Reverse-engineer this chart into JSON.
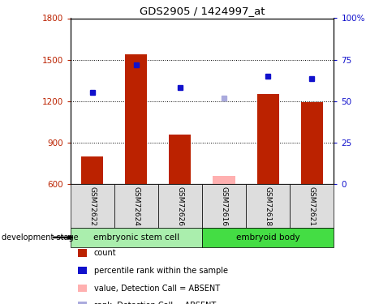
{
  "title": "GDS2905 / 1424997_at",
  "samples": [
    "GSM72622",
    "GSM72624",
    "GSM72626",
    "GSM72616",
    "GSM72618",
    "GSM72621"
  ],
  "bar_values": [
    800,
    1540,
    960,
    660,
    1250,
    1195
  ],
  "bar_absent": [
    false,
    false,
    false,
    true,
    false,
    false
  ],
  "dot_values": [
    1265,
    1460,
    1300,
    1220,
    1380,
    1360
  ],
  "dot_absent": [
    false,
    false,
    false,
    true,
    false,
    false
  ],
  "ylim_left": [
    600,
    1800
  ],
  "ylim_right": [
    0,
    100
  ],
  "yticks_left": [
    600,
    900,
    1200,
    1500,
    1800
  ],
  "yticks_right": [
    0,
    25,
    50,
    75,
    100
  ],
  "yticklabels_right": [
    "0",
    "25",
    "50",
    "75",
    "100%"
  ],
  "group1_label": "embryonic stem cell",
  "group2_label": "embryoid body",
  "stage_label": "development stage",
  "bar_color": "#BB2200",
  "bar_absent_color": "#FFB0B0",
  "dot_color": "#1111CC",
  "dot_absent_color": "#AAAADD",
  "group1_color": "#AAEEAD",
  "group2_color": "#44DD44",
  "legend_items": [
    {
      "label": "count",
      "color": "#BB2200"
    },
    {
      "label": "percentile rank within the sample",
      "color": "#1111CC"
    },
    {
      "label": "value, Detection Call = ABSENT",
      "color": "#FFB0B0"
    },
    {
      "label": "rank, Detection Call = ABSENT",
      "color": "#AAAADD"
    }
  ]
}
